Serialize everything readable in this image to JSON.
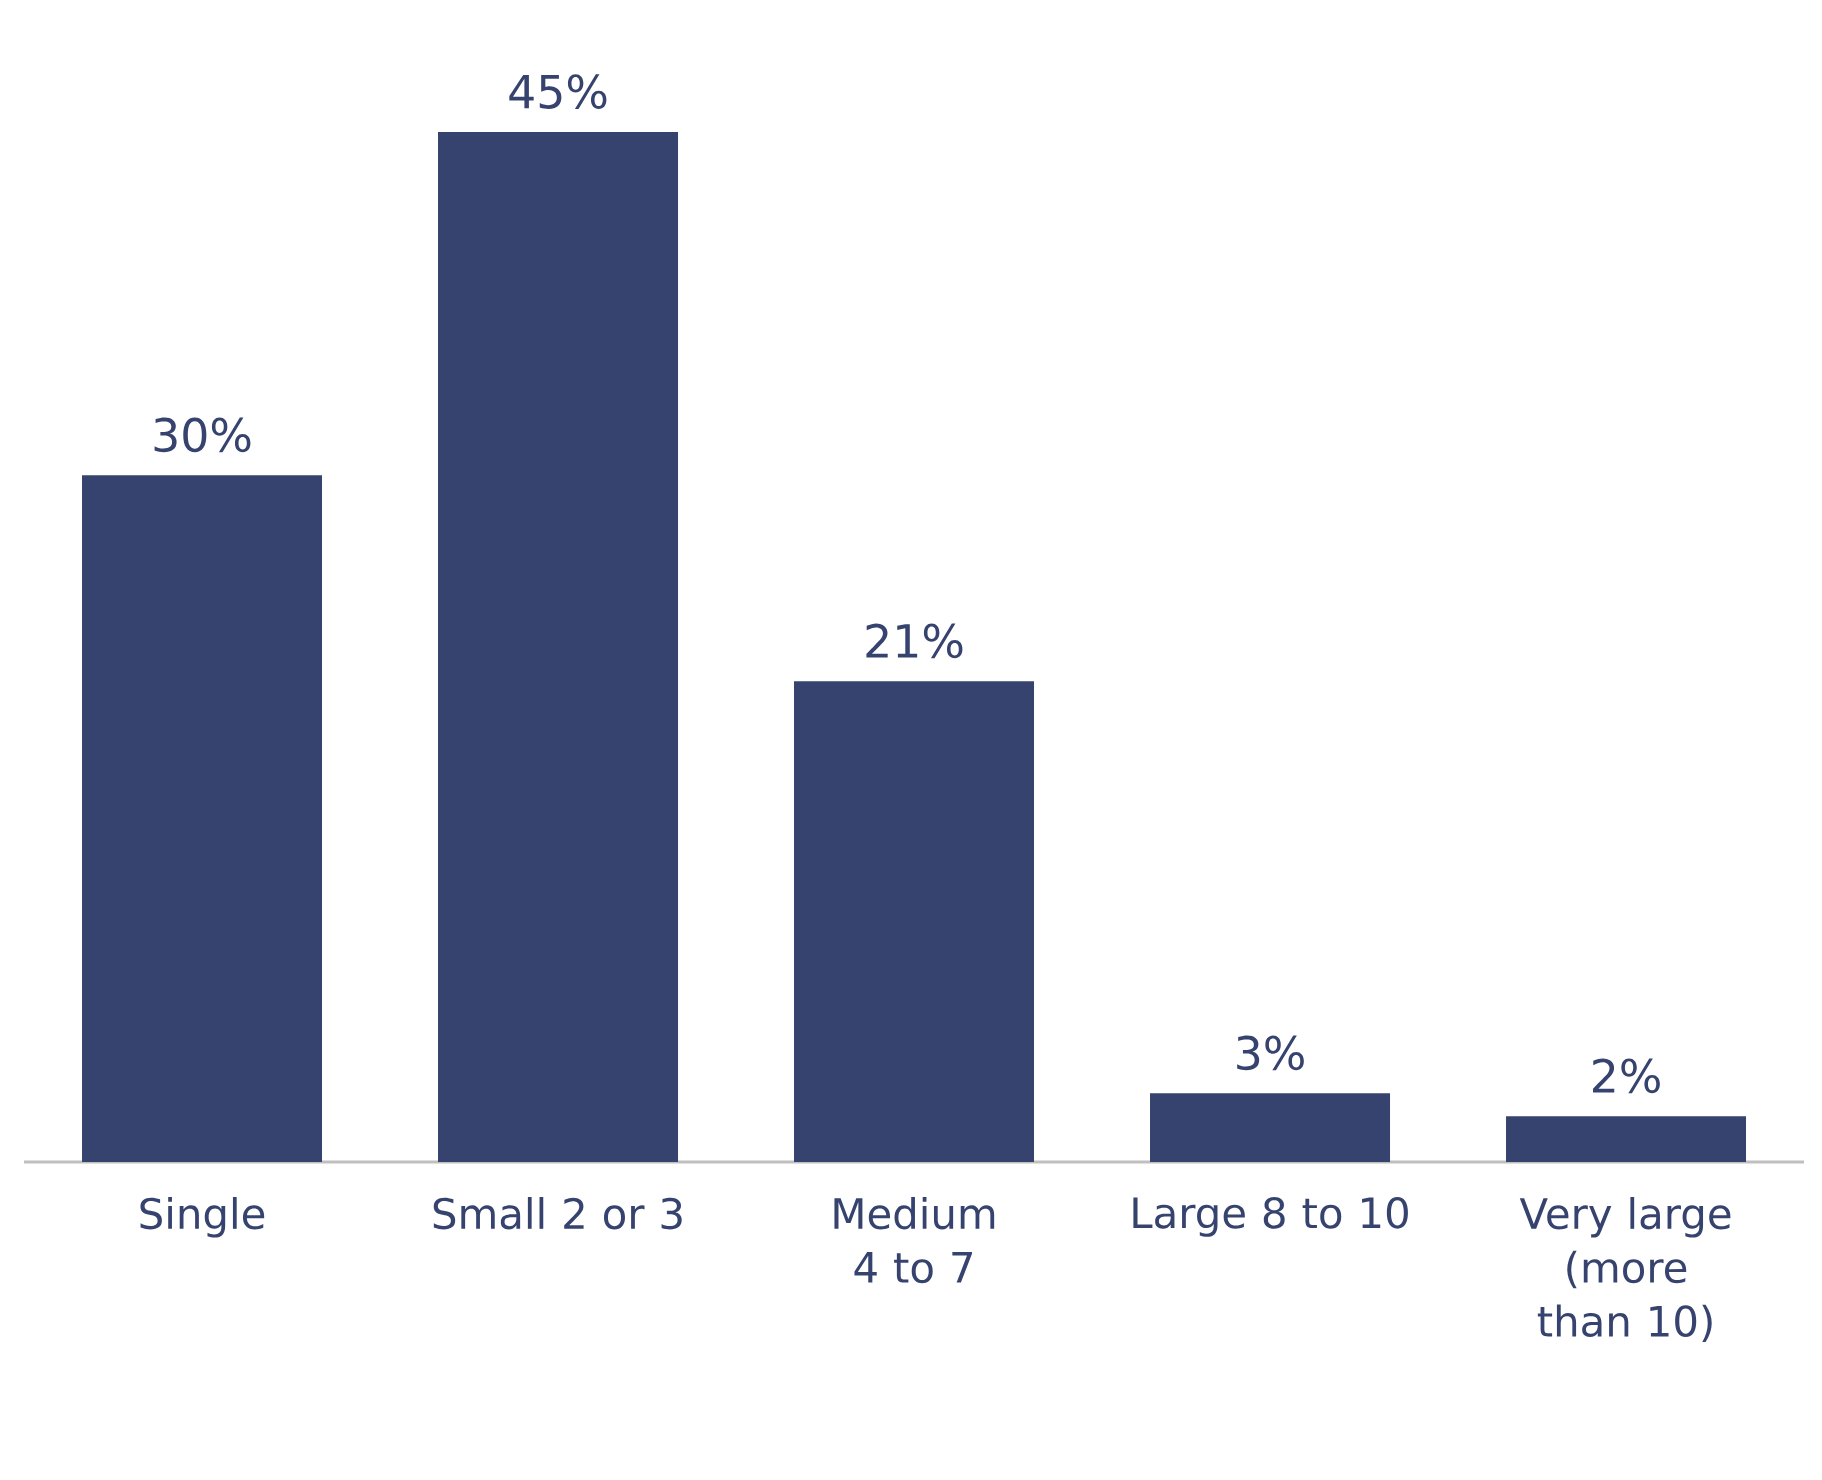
{
  "chart_data": {
    "type": "bar",
    "categories": [
      "Single",
      "Small 2 or 3",
      "Medium 4 to 7",
      "Large 8 to 10",
      "Very large (more than 10)"
    ],
    "values": [
      30,
      45,
      21,
      3,
      2
    ],
    "value_labels": [
      "30%",
      "45%",
      "21%",
      "3%",
      "2%"
    ],
    "color": "#36436f",
    "ylim": [
      0,
      45
    ],
    "tick_labels": "x",
    "grid": false
  }
}
